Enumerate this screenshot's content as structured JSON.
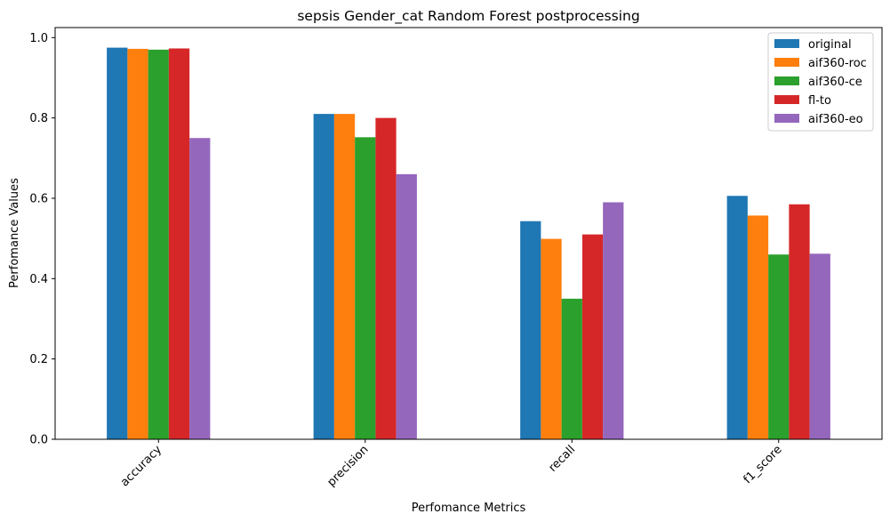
{
  "chart_data": {
    "type": "bar",
    "title": "sepsis Gender_cat Random Forest postprocessing",
    "xlabel": "Perfomance Metrics",
    "ylabel": "Perfomance Values",
    "categories": [
      "accuracy",
      "precision",
      "recall",
      "f1_score"
    ],
    "ylim": [
      0,
      1.025
    ],
    "yticks": [
      0.0,
      0.2,
      0.4,
      0.6,
      0.8,
      1.0
    ],
    "ytick_labels": [
      "0.0",
      "0.2",
      "0.4",
      "0.6",
      "0.8",
      "1.0"
    ],
    "grid": false,
    "legend_position": "top-right",
    "series": [
      {
        "name": "original",
        "color": "#1f77b4",
        "values": [
          0.975,
          0.81,
          0.543,
          0.606
        ]
      },
      {
        "name": "aif360-roc",
        "color": "#ff7f0e",
        "values": [
          0.972,
          0.81,
          0.499,
          0.557
        ]
      },
      {
        "name": "aif360-ce",
        "color": "#2ca02c",
        "values": [
          0.97,
          0.752,
          0.35,
          0.46
        ]
      },
      {
        "name": "fl-to",
        "color": "#d62728",
        "values": [
          0.973,
          0.8,
          0.51,
          0.585
        ]
      },
      {
        "name": "aif360-eo",
        "color": "#9467bd",
        "values": [
          0.75,
          0.66,
          0.59,
          0.462
        ]
      }
    ]
  }
}
